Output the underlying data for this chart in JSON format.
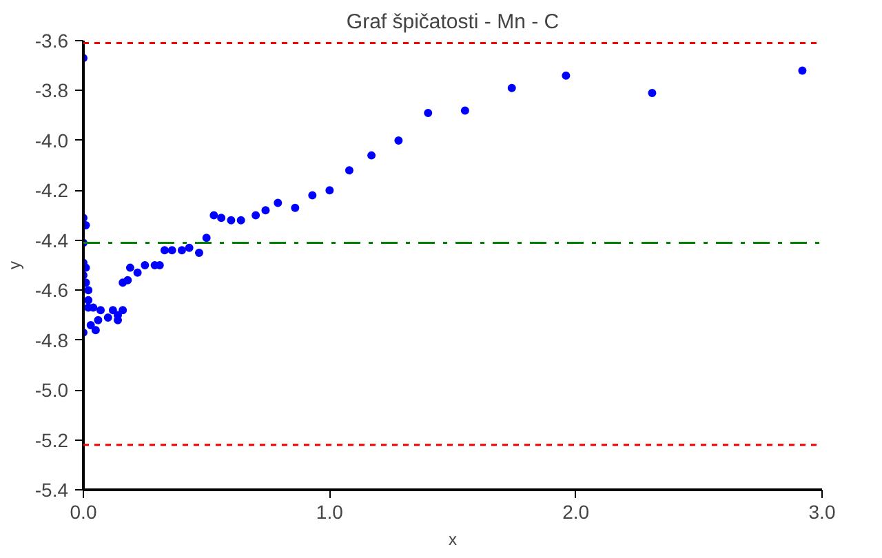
{
  "chart_data": {
    "type": "scatter",
    "title": "Graf špičatosti - Mn - C",
    "xlabel": "x",
    "ylabel": "y",
    "x": [
      0.0,
      0.0,
      0.01,
      0.0,
      0.0,
      0.01,
      0.0,
      0.01,
      0.02,
      0.02,
      0.02,
      0.0,
      0.03,
      0.05,
      0.04,
      0.07,
      0.1,
      0.06,
      0.12,
      0.14,
      0.16,
      0.14,
      0.16,
      0.18,
      0.19,
      0.22,
      0.25,
      0.29,
      0.31,
      0.33,
      0.36,
      0.4,
      0.43,
      0.47,
      0.5,
      0.53,
      0.56,
      0.6,
      0.64,
      0.7,
      0.74,
      0.79,
      0.86,
      0.93,
      1.0,
      1.08,
      1.17,
      1.28,
      1.4,
      1.55,
      1.74,
      1.96,
      2.31,
      2.92
    ],
    "series": [
      {
        "color": "#0000ff",
        "values": [
          -3.67,
          -4.31,
          -4.34,
          -4.41,
          -4.49,
          -4.51,
          -4.54,
          -4.57,
          -4.6,
          -4.64,
          -4.67,
          -4.77,
          -4.74,
          -4.76,
          -4.67,
          -4.68,
          -4.71,
          -4.72,
          -4.68,
          -4.7,
          -4.68,
          -4.72,
          -4.57,
          -4.56,
          -4.51,
          -4.53,
          -4.5,
          -4.5,
          -4.5,
          -4.44,
          -4.44,
          -4.44,
          -4.43,
          -4.45,
          -4.39,
          -4.3,
          -4.31,
          -4.32,
          -4.32,
          -4.3,
          -4.28,
          -4.25,
          -4.27,
          -4.22,
          -4.2,
          -4.12,
          -4.06,
          -4.0,
          -3.89,
          -3.88,
          -3.79,
          -3.74,
          -3.81,
          -3.72
        ]
      }
    ],
    "marker": "circle",
    "grid": false,
    "xlim": [
      0,
      3.0
    ],
    "ylim": [
      -5.4,
      -3.6
    ],
    "xticks": [
      {
        "value": 0,
        "label": "0.0"
      },
      {
        "value": 1,
        "label": "1.0"
      },
      {
        "value": 2,
        "label": "2.0"
      },
      {
        "value": 3,
        "label": "3.0"
      }
    ],
    "yticks": [
      -3.6,
      -3.8,
      {
        "value": -4,
        "label": "-4.0"
      },
      -4.2,
      -4.4,
      -4.6,
      -4.8,
      {
        "value": -5,
        "label": "-5.0"
      },
      -5.2,
      -5.4
    ],
    "ref_lines": [
      {
        "axis": "y",
        "value": -3.61,
        "color": "#ff0000",
        "line_style": "dashed"
      },
      {
        "axis": "y",
        "value": -5.22,
        "color": "#ff0000",
        "line_style": "dashed"
      },
      {
        "axis": "y",
        "value": -4.41,
        "color": "#008000",
        "line_style": "dashdot"
      }
    ]
  }
}
